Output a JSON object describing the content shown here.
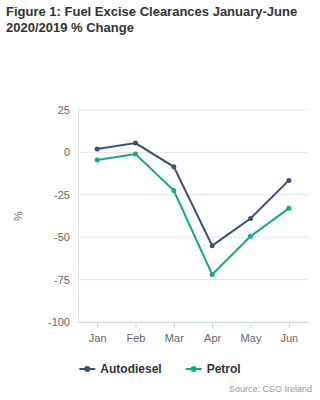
{
  "chart_data": {
    "type": "line",
    "title": "Figure 1: Fuel Excise Clearances January-June 2020/2019 % Change",
    "y_label": "%",
    "source": "Source: CSO Ireland",
    "categories": [
      "Jan",
      "Feb",
      "Mar",
      "Apr",
      "May",
      "Jun"
    ],
    "series": [
      {
        "name": "Autodiesel",
        "color": "#404f7a",
        "marker": "circle",
        "values": [
          2,
          5.5,
          -8.5,
          -55,
          -39,
          -16.5
        ]
      },
      {
        "name": "Petrol",
        "color": "#17a88b",
        "marker": "circle",
        "values": [
          -4.5,
          -1,
          -22.5,
          -72,
          -49.5,
          -33
        ]
      }
    ],
    "ylim": [
      -100,
      25
    ],
    "yticks": [
      25,
      0,
      -25,
      -50,
      -75,
      -100
    ],
    "grid": true,
    "legend": "bottom"
  }
}
